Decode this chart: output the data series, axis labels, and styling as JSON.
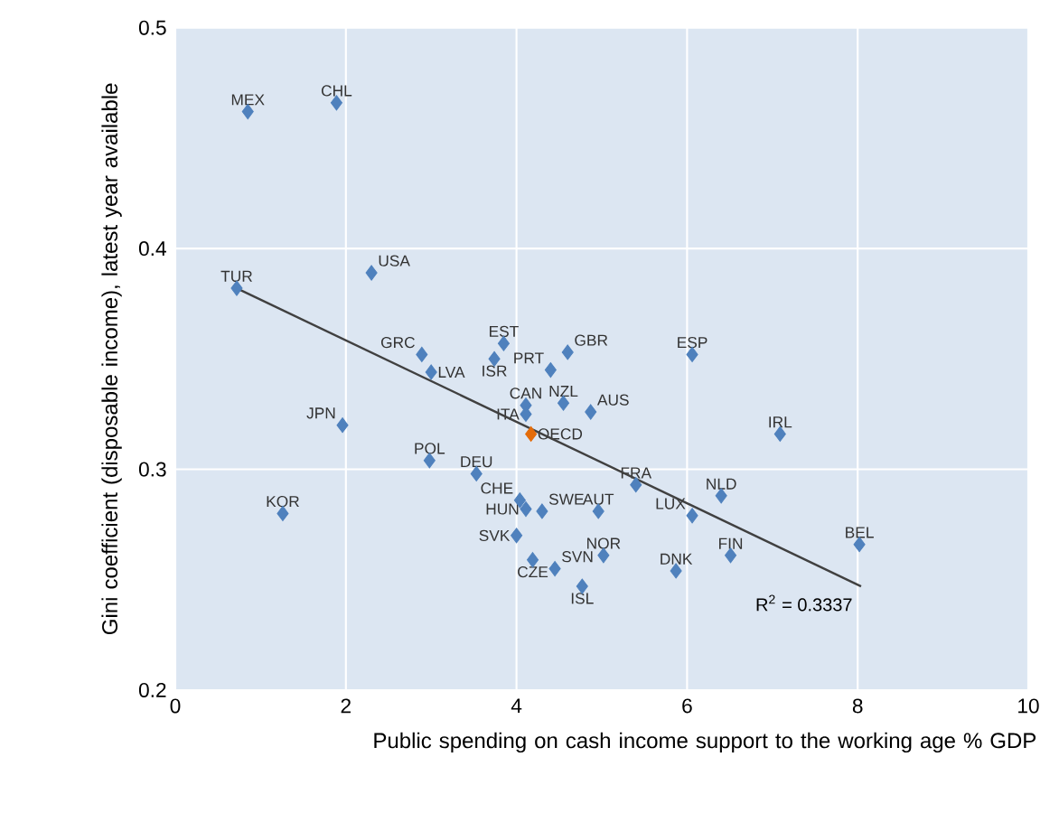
{
  "chart_data": {
    "type": "scatter",
    "xlabel": "Public spending on cash income support to the working age % GDP",
    "ylabel": "Gini coefficient (disposable income), latest year available",
    "xlim": [
      0,
      10
    ],
    "ylim": [
      0.2,
      0.5
    ],
    "xticks": [
      0,
      2,
      4,
      6,
      8,
      10
    ],
    "yticks": [
      0.2,
      0.3,
      0.4,
      0.5
    ],
    "grid": true,
    "marker": "diamond",
    "annotations": [
      "R$^{2}$ = 0.3337"
    ],
    "series": [
      {
        "color": "#4f81bd",
        "x": [
          0.85,
          1.89,
          0.72,
          2.3,
          2.89,
          3.0,
          3.85,
          3.74,
          4.4,
          4.6,
          4.11,
          4.11,
          4.55,
          4.87,
          6.06,
          7.09,
          2.98,
          3.53,
          5.4,
          6.4,
          6.06,
          4.04,
          4.11,
          4.3,
          4.96,
          4.0,
          4.19,
          4.45,
          5.02,
          5.87,
          6.51,
          4.77,
          8.02,
          1.96,
          1.26
        ],
        "values": [
          0.462,
          0.466,
          0.382,
          0.389,
          0.352,
          0.344,
          0.357,
          0.35,
          0.345,
          0.353,
          0.329,
          0.325,
          0.33,
          0.326,
          0.352,
          0.316,
          0.304,
          0.298,
          0.293,
          0.288,
          0.279,
          0.286,
          0.282,
          0.281,
          0.281,
          0.27,
          0.259,
          0.255,
          0.261,
          0.254,
          0.261,
          0.247,
          0.266,
          0.32,
          0.28
        ],
        "value_labels": [
          "MEX",
          "CHL",
          "TUR",
          "USA",
          "GRC",
          "LVA",
          "EST",
          "ISR",
          "PRT",
          "GBR",
          "CAN",
          "ITA",
          "NZL",
          "AUS",
          "ESP",
          "IRL",
          "POL",
          "DEU",
          "FRA",
          "NLD",
          "LUX",
          "CHE",
          "HUN",
          "SWE",
          "AUT",
          "SVK",
          "CZE",
          "SVN",
          "NOR",
          "DNK",
          "FIN",
          "ISL",
          "BEL",
          "JPN",
          "KOR"
        ]
      },
      {
        "color": "#e46c0a",
        "x": [
          4.17
        ],
        "values": [
          0.316
        ],
        "value_labels": [
          "OECD"
        ]
      },
      {
        "type": "line",
        "marker": "none",
        "color": "#404040",
        "x": [
          0.72,
          8.04
        ],
        "values": [
          0.382,
          0.247
        ]
      }
    ]
  }
}
